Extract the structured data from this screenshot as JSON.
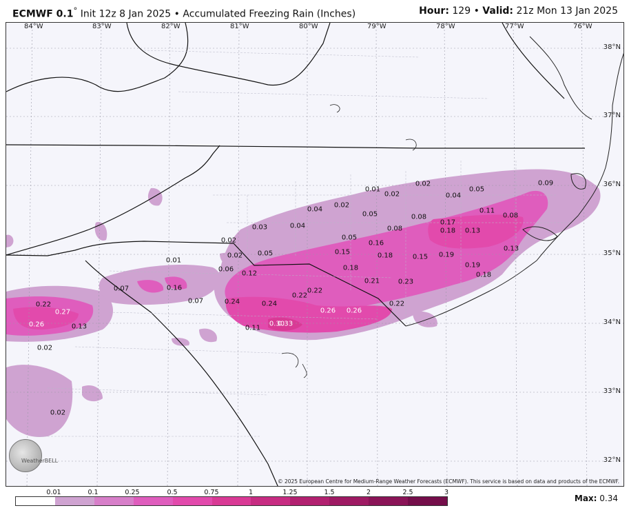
{
  "header": {
    "model": "ECMWF 0.1",
    "degree": "°",
    "init": "Init 12z 8 Jan 2025",
    "bullet": "•",
    "product": "Accumulated Freezing Rain (Inches)",
    "hour_label": "Hour:",
    "hour": "129",
    "valid_label": "Valid:",
    "valid": "21z Mon 13 Jan 2025"
  },
  "map": {
    "lon_labels": [
      "84°W",
      "83°W",
      "82°W",
      "81°W",
      "80°W",
      "79°W",
      "78°W",
      "77°W",
      "76°W"
    ],
    "lat_labels": [
      "38°N",
      "37°N",
      "36°N",
      "35°N",
      "34°N",
      "33°N",
      "32°N"
    ],
    "values": [
      "0.01",
      "0.02",
      "0.05",
      "0.09",
      "0.02",
      "0.04",
      "0.02",
      "0.04",
      "0.03",
      "0.04",
      "0.05",
      "0.08",
      "0.11",
      "0.08",
      "0.17",
      "0.18",
      "0.13",
      "0.05",
      "0.16",
      "0.13",
      "0.02",
      "0.08",
      "0.15",
      "0.18",
      "0.15",
      "0.19",
      "0.05",
      "0.01",
      "0.02",
      "0.06",
      "0.12",
      "0.18",
      "0.21",
      "0.23",
      "0.19",
      "0.18",
      "0.07",
      "0.16",
      "0.22",
      "0.22",
      "0.24",
      "0.24",
      "0.07",
      "0.22",
      "0.27",
      "0.26",
      "0.13",
      "0.26",
      "0.26",
      "0.22",
      "0.11",
      "0.30",
      "0.33",
      "0.02",
      "0.02"
    ],
    "copyright": "© 2025 European Centre for Medium-Range Weather Forecasts (ECMWF). This service is based on data and products of the ECMWF.",
    "logo_text": "WeatherBELL"
  },
  "legend": {
    "ticks": [
      "0.01",
      "0.1",
      "0.25",
      "0.5",
      "0.75",
      "1",
      "1.25",
      "1.5",
      "2",
      "2.5",
      "3"
    ],
    "colors": [
      "#ffffff",
      "#cfa3d1",
      "#d77fc9",
      "#df5dbd",
      "#e24aac",
      "#d93a95",
      "#c72c82",
      "#b22170",
      "#9e1a63",
      "#8a1457",
      "#740e4a"
    ],
    "max_label": "Max:",
    "max_value": "0.34"
  }
}
